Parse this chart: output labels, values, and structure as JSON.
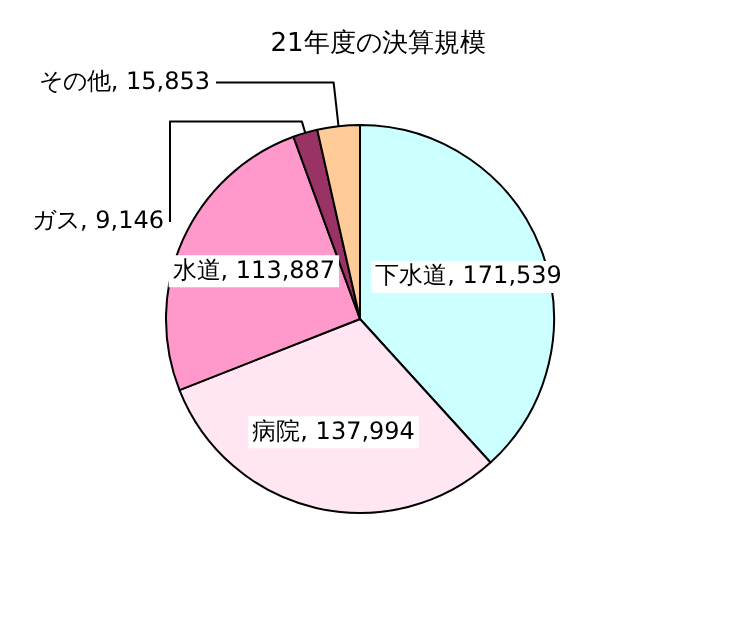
{
  "chart_data": {
    "type": "pie",
    "title": "21年度の決算規模",
    "categories": [
      "下水道",
      "病院",
      "水道",
      "ガス",
      "その他"
    ],
    "values": [
      171539,
      137994,
      113887,
      9146,
      15853
    ],
    "value_labels": [
      "171,539",
      "137,994",
      "113,887",
      "9,146",
      "15,853"
    ],
    "colors": [
      "#ccffff",
      "#ffe6f2",
      "#ff99cc",
      "#993366",
      "#ffcc99"
    ],
    "legend": false
  }
}
